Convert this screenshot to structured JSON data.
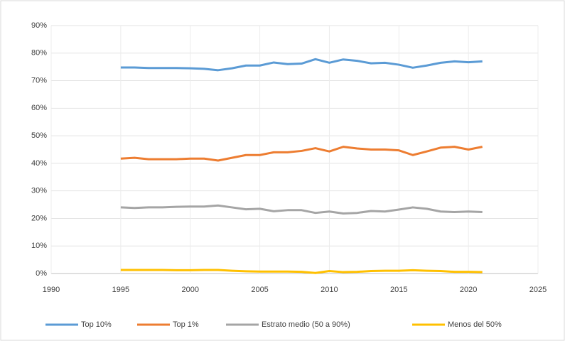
{
  "chart_data": {
    "type": "line",
    "x": [
      1995,
      1996,
      1997,
      1998,
      1999,
      2000,
      2001,
      2002,
      2003,
      2004,
      2005,
      2006,
      2007,
      2008,
      2009,
      2010,
      2011,
      2012,
      2013,
      2014,
      2015,
      2016,
      2017,
      2018,
      2019,
      2020,
      2021
    ],
    "series": [
      {
        "name": "Top 10%",
        "color": "#5b9bd5",
        "values": [
          74.8,
          74.8,
          74.6,
          74.6,
          74.6,
          74.5,
          74.3,
          73.8,
          74.5,
          75.5,
          75.5,
          76.6,
          76,
          76.2,
          77.8,
          76.5,
          77.7,
          77.2,
          76.3,
          76.5,
          75.8,
          74.7,
          75.5,
          76.5,
          77,
          76.7,
          77
        ]
      },
      {
        "name": "Top 1%",
        "color": "#ed7d31",
        "values": [
          41.7,
          42,
          41.5,
          41.5,
          41.5,
          41.7,
          41.7,
          41,
          42,
          43,
          43,
          44,
          44,
          44.5,
          45.5,
          44.3,
          46,
          45.4,
          45,
          45,
          44.7,
          43,
          44.3,
          45.7,
          46,
          45,
          46
        ]
      },
      {
        "name": "Estrato medio (50 a 90%)",
        "color": "#a5a5a5",
        "values": [
          24,
          23.8,
          24,
          24,
          24.2,
          24.3,
          24.3,
          24.7,
          24,
          23.3,
          23.5,
          22.6,
          23,
          23,
          22,
          22.5,
          21.8,
          22,
          22.7,
          22.5,
          23.2,
          24,
          23.5,
          22.5,
          22.3,
          22.5,
          22.3
        ]
      },
      {
        "name": "Menos del 50%",
        "color": "#ffc000",
        "values": [
          1.3,
          1.3,
          1.3,
          1.3,
          1.2,
          1.2,
          1.3,
          1.3,
          1.0,
          0.8,
          0.7,
          0.7,
          0.7,
          0.6,
          0.2,
          0.9,
          0.5,
          0.6,
          0.9,
          1,
          1,
          1.2,
          1,
          0.9,
          0.6,
          0.6,
          0.5
        ]
      }
    ],
    "xlim": [
      1990,
      2025
    ],
    "xticks": [
      1990,
      1995,
      2000,
      2005,
      2010,
      2015,
      2020,
      2025
    ],
    "ylim": [
      0,
      90
    ],
    "yticks": [
      {
        "value": 0,
        "label": "0%"
      },
      {
        "value": 10,
        "label": "10%"
      },
      {
        "value": 20,
        "label": "20%"
      },
      {
        "value": 30,
        "label": "30%"
      },
      {
        "value": 40,
        "label": "40%"
      },
      {
        "value": 50,
        "label": "50%"
      },
      {
        "value": 60,
        "label": "60%"
      },
      {
        "value": 70,
        "label": "70%"
      },
      {
        "value": 80,
        "label": "80%"
      },
      {
        "value": 90,
        "label": "90%"
      }
    ],
    "grid": true,
    "legend": "bottom"
  }
}
